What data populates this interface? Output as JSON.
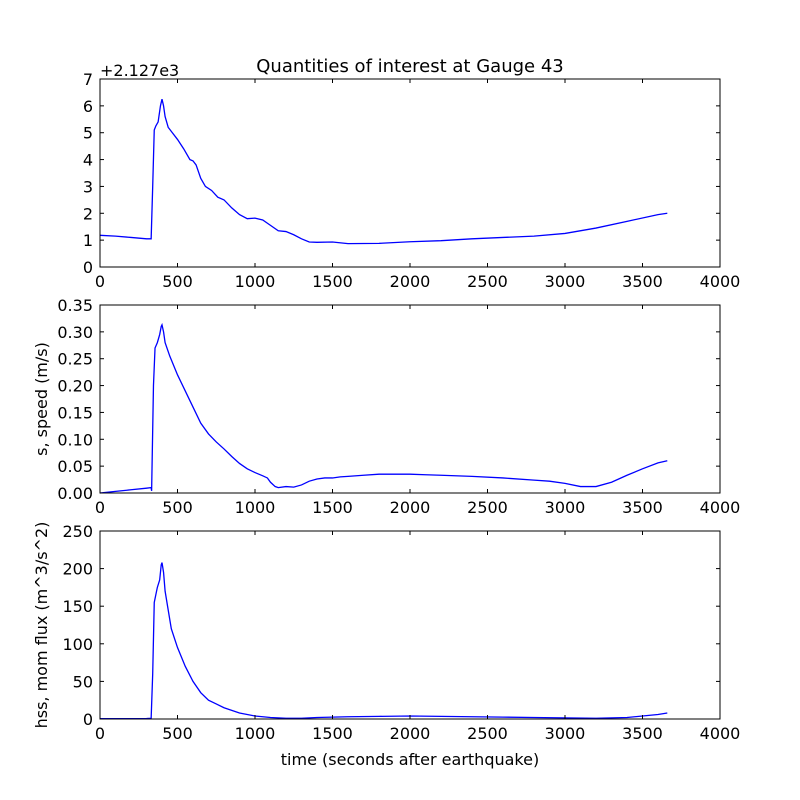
{
  "figure": {
    "title": "Quantities of interest at Gauge 43"
  },
  "chart_data": [
    {
      "type": "line",
      "name": "surface-plot",
      "xlabel": "",
      "ylabel": "",
      "offset_label": "+2.127e3",
      "xlim": [
        0,
        4000
      ],
      "ylim": [
        0,
        7
      ],
      "xticks": [
        0,
        500,
        1000,
        1500,
        2000,
        2500,
        3000,
        3500,
        4000
      ],
      "xtick_labels": [
        "0",
        "500",
        "1000",
        "1500",
        "2000",
        "2500",
        "3000",
        "3500",
        "4000"
      ],
      "yticks": [
        0,
        1,
        2,
        3,
        4,
        5,
        6,
        7
      ],
      "ytick_labels": [
        "0",
        "1",
        "2",
        "3",
        "4",
        "5",
        "6",
        "7"
      ],
      "series": [
        {
          "color": "#0000ff",
          "x": [
            0,
            100,
            200,
            300,
            330,
            340,
            350,
            360,
            375,
            390,
            400,
            410,
            420,
            440,
            460,
            500,
            540,
            580,
            600,
            620,
            650,
            680,
            720,
            760,
            800,
            850,
            900,
            950,
            1000,
            1050,
            1100,
            1150,
            1200,
            1250,
            1300,
            1350,
            1400,
            1500,
            1600,
            1800,
            2000,
            2200,
            2400,
            2600,
            2800,
            3000,
            3200,
            3400,
            3600,
            3660
          ],
          "y": [
            1.18,
            1.15,
            1.1,
            1.05,
            1.05,
            3.0,
            5.1,
            5.25,
            5.4,
            6.0,
            6.25,
            6.0,
            5.6,
            5.2,
            5.05,
            4.75,
            4.4,
            4.0,
            3.95,
            3.8,
            3.3,
            3.0,
            2.85,
            2.6,
            2.5,
            2.2,
            1.95,
            1.8,
            1.82,
            1.75,
            1.55,
            1.35,
            1.32,
            1.2,
            1.05,
            0.93,
            0.92,
            0.93,
            0.87,
            0.88,
            0.94,
            0.98,
            1.05,
            1.1,
            1.15,
            1.25,
            1.45,
            1.7,
            1.95,
            2.0
          ]
        }
      ]
    },
    {
      "type": "line",
      "name": "speed-plot",
      "xlabel": "",
      "ylabel": "s, speed (m/s)",
      "xlim": [
        0,
        4000
      ],
      "ylim": [
        0,
        0.35
      ],
      "xticks": [
        0,
        500,
        1000,
        1500,
        2000,
        2500,
        3000,
        3500,
        4000
      ],
      "xtick_labels": [
        "0",
        "500",
        "1000",
        "1500",
        "2000",
        "2500",
        "3000",
        "3500",
        "4000"
      ],
      "yticks": [
        0,
        0.05,
        0.1,
        0.15,
        0.2,
        0.25,
        0.3,
        0.35
      ],
      "ytick_labels": [
        "0.00",
        "0.05",
        "0.10",
        "0.15",
        "0.20",
        "0.25",
        "0.30",
        "0.35"
      ],
      "series": [
        {
          "color": "#0000ff",
          "x": [
            0,
            100,
            200,
            300,
            330,
            333,
            345,
            355,
            370,
            385,
            395,
            400,
            410,
            420,
            450,
            500,
            550,
            600,
            650,
            700,
            750,
            800,
            850,
            900,
            950,
            1000,
            1050,
            1080,
            1100,
            1130,
            1150,
            1200,
            1250,
            1300,
            1350,
            1400,
            1450,
            1500,
            1550,
            1600,
            1700,
            1800,
            1900,
            2000,
            2100,
            2200,
            2400,
            2600,
            2800,
            2900,
            3000,
            3100,
            3200,
            3300,
            3400,
            3500,
            3600,
            3660
          ],
          "y": [
            0.0,
            0.003,
            0.006,
            0.009,
            0.01,
            0.004,
            0.2,
            0.27,
            0.28,
            0.295,
            0.31,
            0.313,
            0.3,
            0.28,
            0.255,
            0.22,
            0.19,
            0.16,
            0.13,
            0.11,
            0.095,
            0.082,
            0.068,
            0.055,
            0.045,
            0.038,
            0.032,
            0.028,
            0.02,
            0.012,
            0.01,
            0.012,
            0.011,
            0.015,
            0.022,
            0.026,
            0.028,
            0.028,
            0.03,
            0.031,
            0.033,
            0.035,
            0.035,
            0.035,
            0.034,
            0.033,
            0.031,
            0.028,
            0.024,
            0.022,
            0.018,
            0.012,
            0.012,
            0.02,
            0.033,
            0.045,
            0.056,
            0.06
          ]
        }
      ]
    },
    {
      "type": "line",
      "name": "flux-plot",
      "xlabel": "time (seconds after earthquake)",
      "ylabel": "hss, mom flux (m^3/s^2)",
      "xlim": [
        0,
        4000
      ],
      "ylim": [
        0,
        250
      ],
      "xticks": [
        0,
        500,
        1000,
        1500,
        2000,
        2500,
        3000,
        3500,
        4000
      ],
      "xtick_labels": [
        "0",
        "500",
        "1000",
        "1500",
        "2000",
        "2500",
        "3000",
        "3500",
        "4000"
      ],
      "yticks": [
        0,
        50,
        100,
        150,
        200,
        250
      ],
      "ytick_labels": [
        "0",
        "50",
        "100",
        "150",
        "200",
        "250"
      ],
      "series": [
        {
          "color": "#0000ff",
          "x": [
            0,
            100,
            200,
            300,
            330,
            340,
            350,
            360,
            370,
            385,
            395,
            400,
            410,
            420,
            440,
            460,
            500,
            550,
            600,
            650,
            700,
            750,
            800,
            900,
            1000,
            1100,
            1200,
            1300,
            1400,
            1500,
            1600,
            1800,
            2000,
            2200,
            2400,
            2600,
            2800,
            3000,
            3200,
            3400,
            3500,
            3600,
            3660
          ],
          "y": [
            0.5,
            0.5,
            0.5,
            0.6,
            1.0,
            60,
            155,
            165,
            175,
            185,
            205,
            208,
            195,
            170,
            145,
            120,
            95,
            70,
            50,
            35,
            25,
            20,
            15,
            8,
            4,
            2,
            1,
            1,
            2,
            2.5,
            3,
            3.5,
            4,
            3.5,
            3,
            2.5,
            2,
            1.5,
            1,
            2,
            4,
            6,
            8
          ]
        }
      ]
    }
  ]
}
